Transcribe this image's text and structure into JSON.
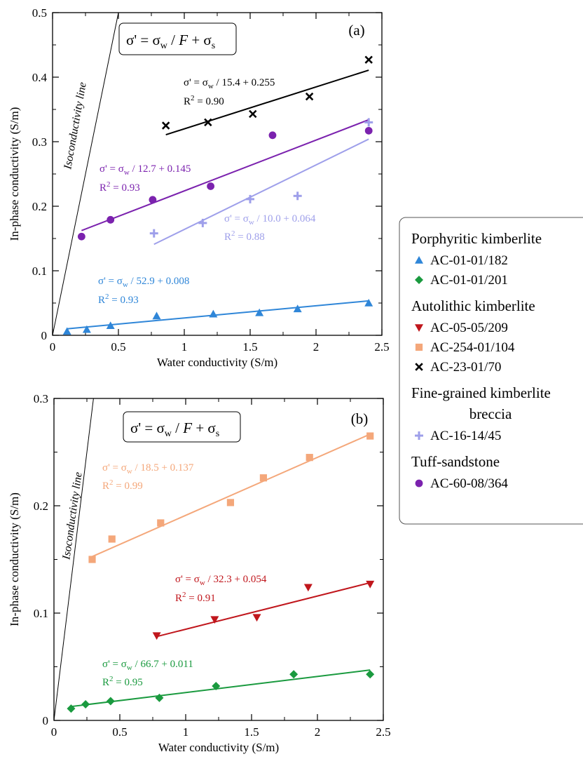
{
  "chart_data": [
    {
      "type": "scatter",
      "panel_label": "(a)",
      "xlabel": "Water conductivity (S/m)",
      "ylabel": "In-phase conductivity (S/m)",
      "xlim": [
        0,
        2.5
      ],
      "ylim": [
        0,
        0.5
      ],
      "x_ticks": [
        0,
        0.5,
        1,
        1.5,
        2,
        2.5
      ],
      "x_tick_labels": [
        "0",
        "0.5",
        "1",
        "1.5",
        "2",
        "2.5"
      ],
      "y_ticks": [
        0,
        0.1,
        0.2,
        0.3,
        0.4,
        0.5
      ],
      "y_tick_labels": [
        "0",
        "0.1",
        "0.2",
        "0.3",
        "0.4",
        "0.5"
      ],
      "grid": false,
      "model_box": {
        "pre": "σ' = σ",
        "sub": "w",
        "mid": " / ",
        "ital": "F",
        "post": " + σ",
        "sub2": "s"
      },
      "isoconductivity_label": "Isoconductivity line",
      "isoconductivity_line": [
        [
          0,
          0
        ],
        [
          0.5,
          0.5
        ]
      ],
      "series": [
        {
          "id": "AC-23-01/70",
          "marker": "x",
          "color": "#000000",
          "points": [
            [
              0.86,
              0.325
            ],
            [
              1.18,
              0.33
            ],
            [
              1.52,
              0.343
            ],
            [
              1.95,
              0.37
            ],
            [
              2.4,
              0.427
            ]
          ],
          "fit": {
            "x": [
              0.86,
              2.4
            ],
            "F": 15.4,
            "sigma_s": 0.255
          },
          "eq_label": {
            "pre": "σ' = σ",
            "sub": "w",
            "post": " / 15.4 + 0.255"
          },
          "r2_label": {
            "pre": "R",
            "sup": "2",
            "post": " = 0.90"
          }
        },
        {
          "id": "AC-60-08/364",
          "marker": "circle",
          "color": "#7B22AE",
          "points": [
            [
              0.22,
              0.153
            ],
            [
              0.44,
              0.179
            ],
            [
              0.76,
              0.21
            ],
            [
              1.2,
              0.231
            ],
            [
              1.67,
              0.31
            ],
            [
              2.4,
              0.317
            ]
          ],
          "fit": {
            "x": [
              0.22,
              2.4
            ],
            "F": 12.7,
            "sigma_s": 0.145
          },
          "eq_label": {
            "pre": "σ' = σ",
            "sub": "w",
            "post": " / 12.7 + 0.145"
          },
          "r2_label": {
            "pre": "R",
            "sup": "2",
            "post": " = 0.93"
          }
        },
        {
          "id": "AC-16-14/45",
          "marker": "plus",
          "color": "#9E9FEA",
          "points": [
            [
              0.77,
              0.158
            ],
            [
              1.14,
              0.174
            ],
            [
              1.5,
              0.211
            ],
            [
              1.86,
              0.216
            ],
            [
              2.4,
              0.33
            ]
          ],
          "fit": {
            "x": [
              0.77,
              2.4
            ],
            "F": 10.0,
            "sigma_s": 0.064
          },
          "eq_label": {
            "pre": "σ' = σ",
            "sub": "w",
            "post": " / 10.0 + 0.064"
          },
          "r2_label": {
            "pre": "R",
            "sup": "2",
            "post": " = 0.88"
          }
        },
        {
          "id": "AC-01-01/182",
          "marker": "triangle-up",
          "color": "#2F86D8",
          "points": [
            [
              0.11,
              0.006
            ],
            [
              0.26,
              0.009
            ],
            [
              0.44,
              0.015
            ],
            [
              0.79,
              0.03
            ],
            [
              1.22,
              0.033
            ],
            [
              1.57,
              0.035
            ],
            [
              1.86,
              0.041
            ],
            [
              2.4,
              0.05
            ]
          ],
          "fit": {
            "x": [
              0.11,
              2.4
            ],
            "F": 52.9,
            "sigma_s": 0.008
          },
          "eq_label": {
            "pre": "σ' = σ",
            "sub": "w",
            "post": " / 52.9 + 0.008"
          },
          "r2_label": {
            "pre": "R",
            "sup": "2",
            "post": " = 0.93"
          }
        }
      ]
    },
    {
      "type": "scatter",
      "panel_label": "(b)",
      "xlabel": "Water conductivity (S/m)",
      "ylabel": "In-phase conductivity (S/m)",
      "xlim": [
        0,
        2.5
      ],
      "ylim": [
        0,
        0.3
      ],
      "x_ticks": [
        0,
        0.5,
        1,
        1.5,
        2,
        2.5
      ],
      "x_tick_labels": [
        "0",
        "0.5",
        "1",
        "1.5",
        "2",
        "2.5"
      ],
      "y_ticks": [
        0,
        0.1,
        0.2,
        0.3
      ],
      "y_tick_labels": [
        "0",
        "0.1",
        "0.2",
        "0.3"
      ],
      "grid": false,
      "model_box": {
        "pre": "σ' = σ",
        "sub": "w",
        "mid": " / ",
        "ital": "F",
        "post": " + σ",
        "sub2": "s"
      },
      "isoconductivity_label": "Isoconductivity line",
      "isoconductivity_line": [
        [
          0,
          0
        ],
        [
          0.3,
          0.3
        ]
      ],
      "series": [
        {
          "id": "AC-254-01/104",
          "marker": "square",
          "color": "#F4A77A",
          "points": [
            [
              0.29,
              0.15
            ],
            [
              0.44,
              0.169
            ],
            [
              0.81,
              0.184
            ],
            [
              1.34,
              0.203
            ],
            [
              1.59,
              0.226
            ],
            [
              1.94,
              0.245
            ],
            [
              2.4,
              0.265
            ]
          ],
          "fit": {
            "x": [
              0.29,
              2.4
            ],
            "F": 18.5,
            "sigma_s": 0.137
          },
          "eq_label": {
            "pre": "σ' = σ",
            "sub": "w",
            "post": " / 18.5 + 0.137"
          },
          "r2_label": {
            "pre": "R",
            "sup": "2",
            "post": " = 0.99"
          }
        },
        {
          "id": "AC-05-05/209",
          "marker": "triangle-down",
          "color": "#C0161C",
          "points": [
            [
              0.78,
              0.079
            ],
            [
              1.22,
              0.094
            ],
            [
              1.54,
              0.096
            ],
            [
              1.93,
              0.124
            ],
            [
              2.4,
              0.127
            ]
          ],
          "fit": {
            "x": [
              0.78,
              2.4
            ],
            "F": 32.3,
            "sigma_s": 0.054
          },
          "eq_label": {
            "pre": "σ' = σ",
            "sub": "w",
            "post": " / 32.3 + 0.054"
          },
          "r2_label": {
            "pre": "R",
            "sup": "2",
            "post": " = 0.91"
          }
        },
        {
          "id": "AC-01-01/201",
          "marker": "diamond",
          "color": "#1A9A3F",
          "points": [
            [
              0.13,
              0.011
            ],
            [
              0.24,
              0.015
            ],
            [
              0.43,
              0.018
            ],
            [
              0.8,
              0.021
            ],
            [
              1.23,
              0.032
            ],
            [
              1.82,
              0.043
            ],
            [
              2.4,
              0.043
            ]
          ],
          "fit": {
            "x": [
              0.13,
              2.4
            ],
            "F": 66.7,
            "sigma_s": 0.011
          },
          "eq_label": {
            "pre": "σ' = σ",
            "sub": "w",
            "post": " / 66.7 + 0.011"
          },
          "r2_label": {
            "pre": "R",
            "sup": "2",
            "post": " = 0.95"
          }
        }
      ]
    }
  ],
  "legend": {
    "placement": "right",
    "groups": [
      {
        "title": "Porphyritic kimberlite",
        "items": [
          {
            "label": "AC-01-01/182",
            "marker": "triangle-up",
            "color": "#2F86D8"
          },
          {
            "label": "AC-01-01/201",
            "marker": "diamond",
            "color": "#1A9A3F"
          }
        ]
      },
      {
        "title": "Autolithic kimberlite",
        "items": [
          {
            "label": "AC-05-05/209",
            "marker": "triangle-down",
            "color": "#C0161C"
          },
          {
            "label": "AC-254-01/104",
            "marker": "square",
            "color": "#F4A77A"
          },
          {
            "label": "AC-23-01/70",
            "marker": "x",
            "color": "#000000"
          }
        ]
      },
      {
        "title": [
          "Fine-grained kimberlite",
          "breccia"
        ],
        "items": [
          {
            "label": "AC-16-14/45",
            "marker": "plus",
            "color": "#9E9FEA"
          }
        ]
      },
      {
        "title": "Tuff-sandstone",
        "items": [
          {
            "label": "AC-60-08/364",
            "marker": "circle",
            "color": "#7B22AE"
          }
        ]
      }
    ]
  }
}
